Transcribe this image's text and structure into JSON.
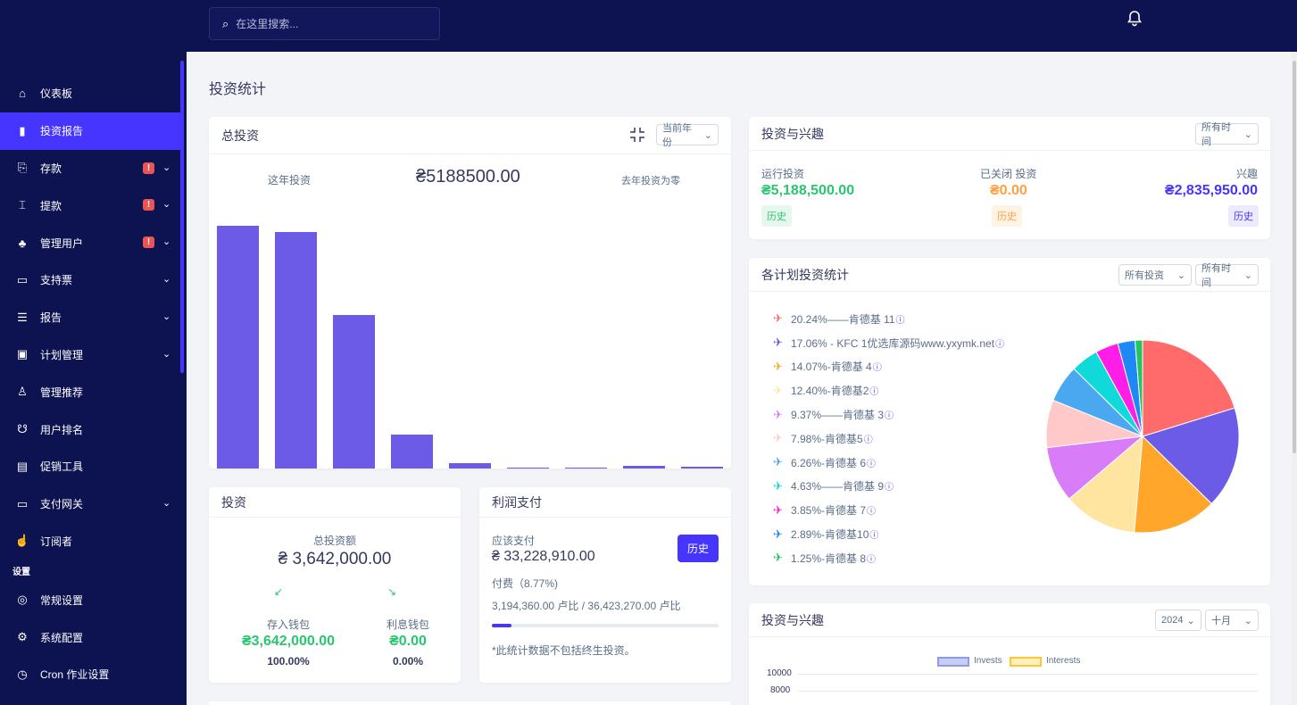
{
  "search": {
    "placeholder": "在这里搜索..."
  },
  "sidebar": {
    "items": [
      {
        "label": "仪表板",
        "icon": "home-icon",
        "glyph": "⌂"
      },
      {
        "label": "投资报告",
        "icon": "bar-chart-icon",
        "glyph": "▮"
      },
      {
        "label": "存款",
        "icon": "deposit-icon",
        "glyph": "⎘",
        "badge": "!",
        "chevron": "⌄"
      },
      {
        "label": "提款",
        "icon": "bank-icon",
        "glyph": "⌶",
        "badge": "!",
        "chevron": "⌄"
      },
      {
        "label": "管理用户",
        "icon": "users-icon",
        "glyph": "♣",
        "badge": "!",
        "chevron": "⌄"
      },
      {
        "label": "支持票",
        "icon": "ticket-icon",
        "glyph": "▭",
        "chevron": "⌄"
      },
      {
        "label": "报告",
        "icon": "list-icon",
        "glyph": "☰",
        "chevron": "⌄"
      },
      {
        "label": "计划管理",
        "icon": "clipboard-icon",
        "glyph": "▣",
        "chevron": "⌄"
      },
      {
        "label": "管理推荐",
        "icon": "referral-icon",
        "glyph": "♙"
      },
      {
        "label": "用户排名",
        "icon": "medal-icon",
        "glyph": "☋"
      },
      {
        "label": "促销工具",
        "icon": "ad-icon",
        "glyph": "▤"
      },
      {
        "label": "支付网关",
        "icon": "card-icon",
        "glyph": "▭",
        "chevron": "⌄"
      },
      {
        "label": "订阅者",
        "icon": "thumbs-up-icon",
        "glyph": "☝"
      }
    ],
    "section": "设置",
    "settings": [
      {
        "label": "常规设置",
        "icon": "settings-icon",
        "glyph": "◎"
      },
      {
        "label": "系统配置",
        "icon": "gear-icon",
        "glyph": "⚙"
      },
      {
        "label": "Cron 作业设置",
        "icon": "clock-icon",
        "glyph": "◷"
      }
    ]
  },
  "page_title": "投资统计",
  "total_invest": {
    "title": "总投资",
    "select": "当前年份",
    "this_year_label": "这年投资",
    "amount": "₴5188500.00",
    "last_year_label": "去年投资为零",
    "chart_data": {
      "type": "bar",
      "values": [
        100,
        97.5,
        63.3,
        14,
        2.2,
        0.2,
        0.5,
        1,
        0.8
      ],
      "ylim": [
        0,
        100
      ],
      "color": "#6c5be7"
    }
  },
  "invest_interest_top": {
    "title": "投资与兴趣",
    "select": "所有时间",
    "running_label": "运行投资",
    "running_value": "₴5,188,500.00",
    "running_btn": "历史",
    "closed_label": "已关闭 投资",
    "closed_value": "₴0.00",
    "closed_btn": "历史",
    "interest_label": "兴趣",
    "interest_value": "₴2,835,950.00",
    "interest_btn": "历史"
  },
  "plan_stats": {
    "title": "各计划投资统计",
    "select1": "所有投资",
    "select2": "所有时间",
    "legend": [
      {
        "label": "20.24%——肯德基 11",
        "color": "#ff6b6b"
      },
      {
        "label": "17.06% - KFC 1优选库源码www.yxymk.net",
        "color": "#6c5be7"
      },
      {
        "label": "14.07%-肯德基 4",
        "color": "#ffa62b"
      },
      {
        "label": "12.40%-肯德基2",
        "color": "#ffe5a0"
      },
      {
        "label": "9.37%——肯德基 3",
        "color": "#d97cf8"
      },
      {
        "label": "7.98%-肯德基5",
        "color": "#ffc9c9"
      },
      {
        "label": "6.26%-肯德基 6",
        "color": "#4aa8f0"
      },
      {
        "label": "4.63%——肯德基 9",
        "color": "#0fd9d9"
      },
      {
        "label": "3.85%-肯德基 7",
        "color": "#ff1ee8"
      },
      {
        "label": "2.89%-肯德基10",
        "color": "#1e88f5"
      },
      {
        "label": "1.25%-肯德基 8",
        "color": "#22c55e"
      }
    ],
    "chart_data": {
      "type": "pie",
      "values": [
        20.24,
        17.06,
        14.07,
        12.4,
        9.37,
        7.98,
        6.26,
        4.63,
        3.85,
        2.89,
        1.25
      ],
      "colors": [
        "#ff6b6b",
        "#6c5be7",
        "#ffa62b",
        "#ffe5a0",
        "#d97cf8",
        "#ffc9c9",
        "#4aa8f0",
        "#0fd9d9",
        "#ff1ee8",
        "#1e88f5",
        "#22c55e"
      ]
    }
  },
  "invest_card": {
    "title": "投资",
    "total_label": "总投资额",
    "total_value": "₴ 3,642,000.00",
    "arrow_left": "↙",
    "arrow_right": "↘",
    "deposit_label": "存入钱包",
    "deposit_value": "₴3,642,000.00",
    "deposit_pct": "100.00%",
    "interest_label": "利息钱包",
    "interest_value": "₴0.00",
    "interest_pct": "0.00%"
  },
  "profit_card": {
    "title": "利润支付",
    "payable_label": "应该支付",
    "payable_value": "₴ 33,228,910.00",
    "btn": "历史",
    "fee_label": "付费（8.77%)",
    "ratio": "3,194,360.00 卢比 / 36,423,270.00 卢比",
    "progress": 8.77,
    "note": "*此统计数据不包括终生投资。"
  },
  "invest_interest_bottom": {
    "title": "投资与兴趣",
    "year": "2024",
    "month": "十月",
    "legend_invests": "Invests",
    "legend_interests": "Interests",
    "ticks": [
      "10000",
      "8000"
    ]
  }
}
